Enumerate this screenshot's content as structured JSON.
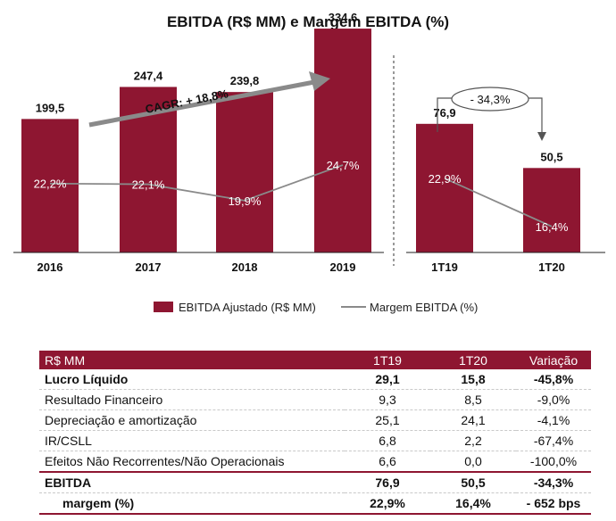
{
  "chart_data": {
    "type": "bar",
    "title": "EBITDA (R$ MM) e Margem EBITDA (%)",
    "categories": [
      "2016",
      "2017",
      "2018",
      "2019",
      "1T19",
      "1T20"
    ],
    "series": [
      {
        "name": "EBITDA Ajustado (R$ MM)",
        "type": "bar",
        "values": [
          199.5,
          247.4,
          239.8,
          334.6,
          76.9,
          50.5
        ],
        "labels": [
          "199,5",
          "247,4",
          "239,8",
          "334,6",
          "76,9",
          "50,5"
        ]
      },
      {
        "name": "Margem EBITDA (%)",
        "type": "line",
        "values": [
          22.2,
          22.1,
          19.9,
          24.7,
          22.9,
          16.4
        ],
        "labels": [
          "22,2%",
          "22,1%",
          "19,9%",
          "24,7%",
          "22,9%",
          "16,4%"
        ]
      }
    ],
    "annual_ylim": [
      0,
      380
    ],
    "quarter_ylim": [
      0,
      120
    ],
    "annotations": {
      "cagr": "CAGR: + 18,8%",
      "variation": "- 34,3%"
    },
    "legend": {
      "position": "bottom",
      "bar_label": "EBITDA Ajustado (R$ MM)",
      "line_label": "Margem EBITDA (%)"
    },
    "colors": {
      "bar": "#8e1631",
      "line": "#8a8a8a",
      "arrow": "#8a8a8a"
    }
  },
  "table": {
    "headers": [
      "R$ MM",
      "1T19",
      "1T20",
      "Variação"
    ],
    "rows": [
      {
        "cells": [
          "Lucro Líquido",
          "29,1",
          "15,8",
          "-45,8%"
        ]
      },
      {
        "cells": [
          "Resultado Financeiro",
          "9,3",
          "8,5",
          "-9,0%"
        ]
      },
      {
        "cells": [
          "Depreciação e amortização",
          "25,1",
          "24,1",
          "-4,1%"
        ]
      },
      {
        "cells": [
          "IR/CSLL",
          "6,8",
          "2,2",
          "-67,4%"
        ]
      },
      {
        "cells": [
          "Efeitos Não Recorrentes/Não Operacionais",
          "6,6",
          "0,0",
          "-100,0%"
        ]
      },
      {
        "cells": [
          "EBITDA",
          "76,9",
          "50,5",
          "-34,3%"
        ]
      },
      {
        "cells": [
          "margem (%)",
          "22,9%",
          "16,4%",
          "- 652 bps"
        ]
      }
    ]
  }
}
